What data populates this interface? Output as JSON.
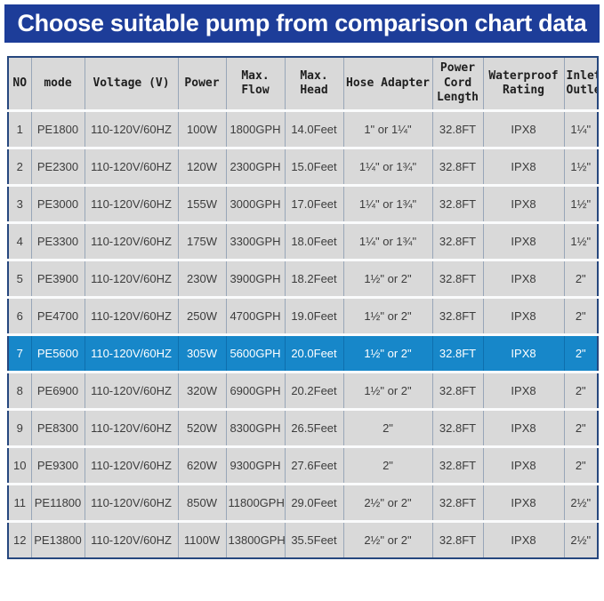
{
  "colors": {
    "banner_bg": "#1d3d99",
    "highlight_bg": "#1787c9",
    "cell_bg": "#d9d9d9",
    "outer_border": "#26477e",
    "grid_line": "#98a6b8",
    "row_gap": "#fafbfc",
    "body_text": "#3c3c3c",
    "header_text": "#1f1f1f"
  },
  "chart_data": {
    "type": "table",
    "title": "Choose suitable pump from comparison chart data",
    "highlighted_row_no": "7",
    "columns": [
      {
        "key": "no",
        "label": "NO"
      },
      {
        "key": "mode",
        "label": "mode"
      },
      {
        "key": "voltage",
        "label": "Voltage (V)"
      },
      {
        "key": "power",
        "label": "Power"
      },
      {
        "key": "max_flow",
        "label": "Max. Flow"
      },
      {
        "key": "max_head",
        "label": "Max. Head"
      },
      {
        "key": "hose_adapter",
        "label": "Hose Adapter"
      },
      {
        "key": "cord_length",
        "label": "Power Cord Length"
      },
      {
        "key": "waterproof",
        "label": "Waterproof Rating"
      },
      {
        "key": "inlet_outlet",
        "label": "Inlet/ Outlet"
      }
    ],
    "rows": [
      {
        "no": "1",
        "mode": "PE1800",
        "voltage": "110-120V/60HZ",
        "power": "100W",
        "max_flow": "1800GPH",
        "max_head": "14.0Feet",
        "hose_adapter": "1\" or 1¼\"",
        "cord_length": "32.8FT",
        "waterproof": "IPX8",
        "inlet_outlet": "1¼\""
      },
      {
        "no": "2",
        "mode": "PE2300",
        "voltage": "110-120V/60HZ",
        "power": "120W",
        "max_flow": "2300GPH",
        "max_head": "15.0Feet",
        "hose_adapter": "1¼\" or 1¾\"",
        "cord_length": "32.8FT",
        "waterproof": "IPX8",
        "inlet_outlet": "1½\""
      },
      {
        "no": "3",
        "mode": "PE3000",
        "voltage": "110-120V/60HZ",
        "power": "155W",
        "max_flow": "3000GPH",
        "max_head": "17.0Feet",
        "hose_adapter": "1¼\" or 1¾\"",
        "cord_length": "32.8FT",
        "waterproof": "IPX8",
        "inlet_outlet": "1½\""
      },
      {
        "no": "4",
        "mode": "PE3300",
        "voltage": "110-120V/60HZ",
        "power": "175W",
        "max_flow": "3300GPH",
        "max_head": "18.0Feet",
        "hose_adapter": "1¼\" or 1¾\"",
        "cord_length": "32.8FT",
        "waterproof": "IPX8",
        "inlet_outlet": "1½\""
      },
      {
        "no": "5",
        "mode": "PE3900",
        "voltage": "110-120V/60HZ",
        "power": "230W",
        "max_flow": "3900GPH",
        "max_head": "18.2Feet",
        "hose_adapter": "1½\" or 2\"",
        "cord_length": "32.8FT",
        "waterproof": "IPX8",
        "inlet_outlet": "2\""
      },
      {
        "no": "6",
        "mode": "PE4700",
        "voltage": "110-120V/60HZ",
        "power": "250W",
        "max_flow": "4700GPH",
        "max_head": "19.0Feet",
        "hose_adapter": "1½\" or 2\"",
        "cord_length": "32.8FT",
        "waterproof": "IPX8",
        "inlet_outlet": "2\""
      },
      {
        "no": "7",
        "mode": "PE5600",
        "voltage": "110-120V/60HZ",
        "power": "305W",
        "max_flow": "5600GPH",
        "max_head": "20.0Feet",
        "hose_adapter": "1½\" or 2\"",
        "cord_length": "32.8FT",
        "waterproof": "IPX8",
        "inlet_outlet": "2\""
      },
      {
        "no": "8",
        "mode": "PE6900",
        "voltage": "110-120V/60HZ",
        "power": "320W",
        "max_flow": "6900GPH",
        "max_head": "20.2Feet",
        "hose_adapter": "1½\" or 2\"",
        "cord_length": "32.8FT",
        "waterproof": "IPX8",
        "inlet_outlet": "2\""
      },
      {
        "no": "9",
        "mode": "PE8300",
        "voltage": "110-120V/60HZ",
        "power": "520W",
        "max_flow": "8300GPH",
        "max_head": "26.5Feet",
        "hose_adapter": "2\"",
        "cord_length": "32.8FT",
        "waterproof": "IPX8",
        "inlet_outlet": "2\""
      },
      {
        "no": "10",
        "mode": "PE9300",
        "voltage": "110-120V/60HZ",
        "power": "620W",
        "max_flow": "9300GPH",
        "max_head": "27.6Feet",
        "hose_adapter": "2\"",
        "cord_length": "32.8FT",
        "waterproof": "IPX8",
        "inlet_outlet": "2\""
      },
      {
        "no": "11",
        "mode": "PE11800",
        "voltage": "110-120V/60HZ",
        "power": "850W",
        "max_flow": "11800GPH",
        "max_head": "29.0Feet",
        "hose_adapter": "2½\" or 2\"",
        "cord_length": "32.8FT",
        "waterproof": "IPX8",
        "inlet_outlet": "2½\""
      },
      {
        "no": "12",
        "mode": "PE13800",
        "voltage": "110-120V/60HZ",
        "power": "1100W",
        "max_flow": "13800GPH",
        "max_head": "35.5Feet",
        "hose_adapter": "2½\" or 2\"",
        "cord_length": "32.8FT",
        "waterproof": "IPX8",
        "inlet_outlet": "2½\""
      }
    ]
  }
}
